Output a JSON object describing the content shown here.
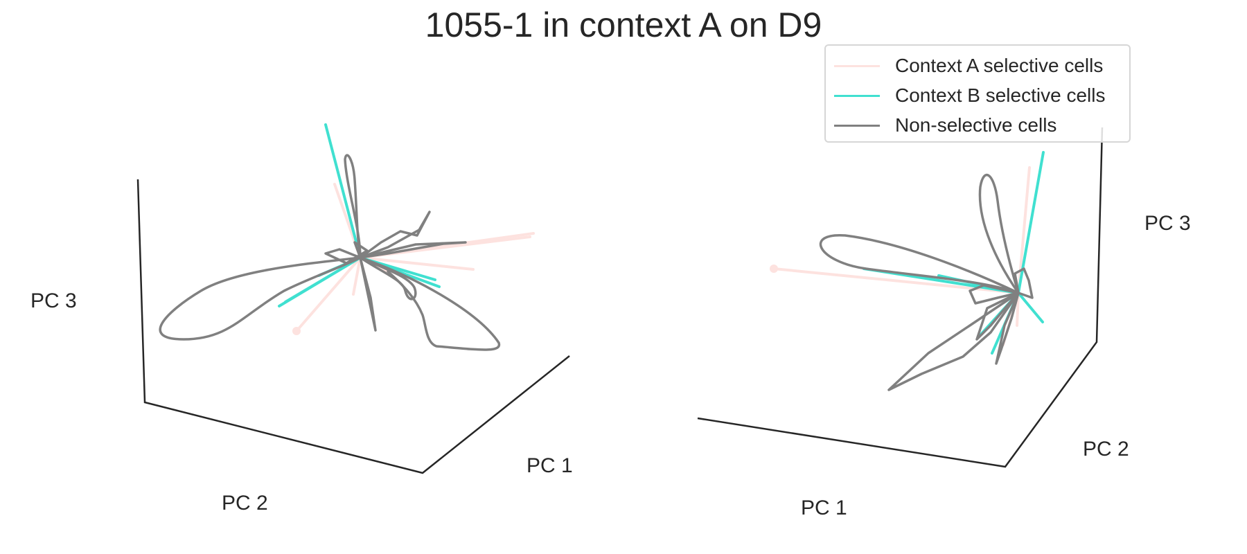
{
  "chart_data": {
    "type": "line",
    "title": "1055-1 in context A on D9",
    "legend": {
      "placement": "top-right",
      "entries": [
        {
          "label": "Context A selective cells",
          "color": "#fde2df"
        },
        {
          "label": "Context B selective cells",
          "color": "#40e0d0"
        },
        {
          "label": "Non-selective cells",
          "color": "#808080"
        }
      ]
    },
    "grid": false,
    "subplots": [
      {
        "name": "left-3d-view",
        "axis_labels": {
          "x": "PC 2",
          "y": "PC 1",
          "z": "PC 3"
        }
      },
      {
        "name": "right-3d-view",
        "axis_labels": {
          "x": "PC 1",
          "y": "PC 2",
          "z": "PC 3"
        }
      }
    ]
  }
}
